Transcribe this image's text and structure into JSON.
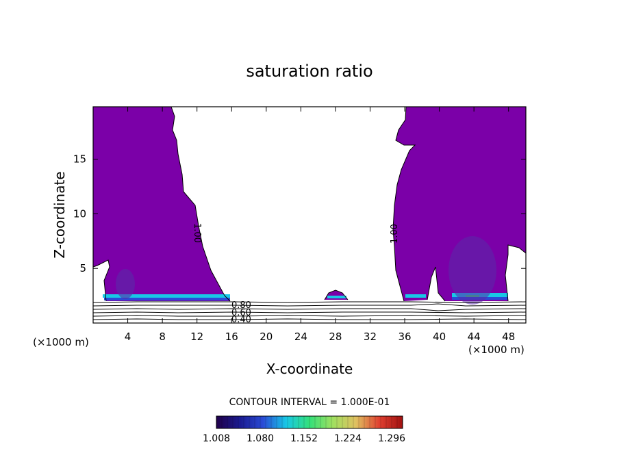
{
  "chart_data": {
    "type": "contour",
    "title": "saturation ratio",
    "xlabel": "X-coordinate",
    "ylabel": "Z-coordinate",
    "x_unit_left": "(×1000 m)",
    "x_unit_right": "(×1000 m)",
    "xlim": [
      0,
      50
    ],
    "ylim": [
      0,
      19.8
    ],
    "x_ticks": [
      4,
      8,
      12,
      16,
      20,
      24,
      28,
      32,
      36,
      40,
      44,
      48
    ],
    "y_ticks": [
      5,
      10,
      15
    ],
    "fill_colors": {
      "main": "#7b00a8",
      "band_cyan": "#18c8e6",
      "band_blue": "#2a4bd6",
      "band_green": "#33e07a"
    },
    "contour_line_labels": [
      "1.00",
      "1.00",
      "0.80",
      "0.60",
      "0.40"
    ],
    "contour_interval_text": "CONTOUR INTERVAL = 1.000E-01",
    "colorbar": {
      "ticks": [
        "1.008",
        "1.080",
        "1.152",
        "1.224",
        "1.296"
      ],
      "colors": [
        "#20004a",
        "#1a1a90",
        "#2a4bd6",
        "#18c8e6",
        "#33e07a",
        "#a0e060",
        "#e0c060",
        "#e04030",
        "#a01010"
      ]
    }
  }
}
